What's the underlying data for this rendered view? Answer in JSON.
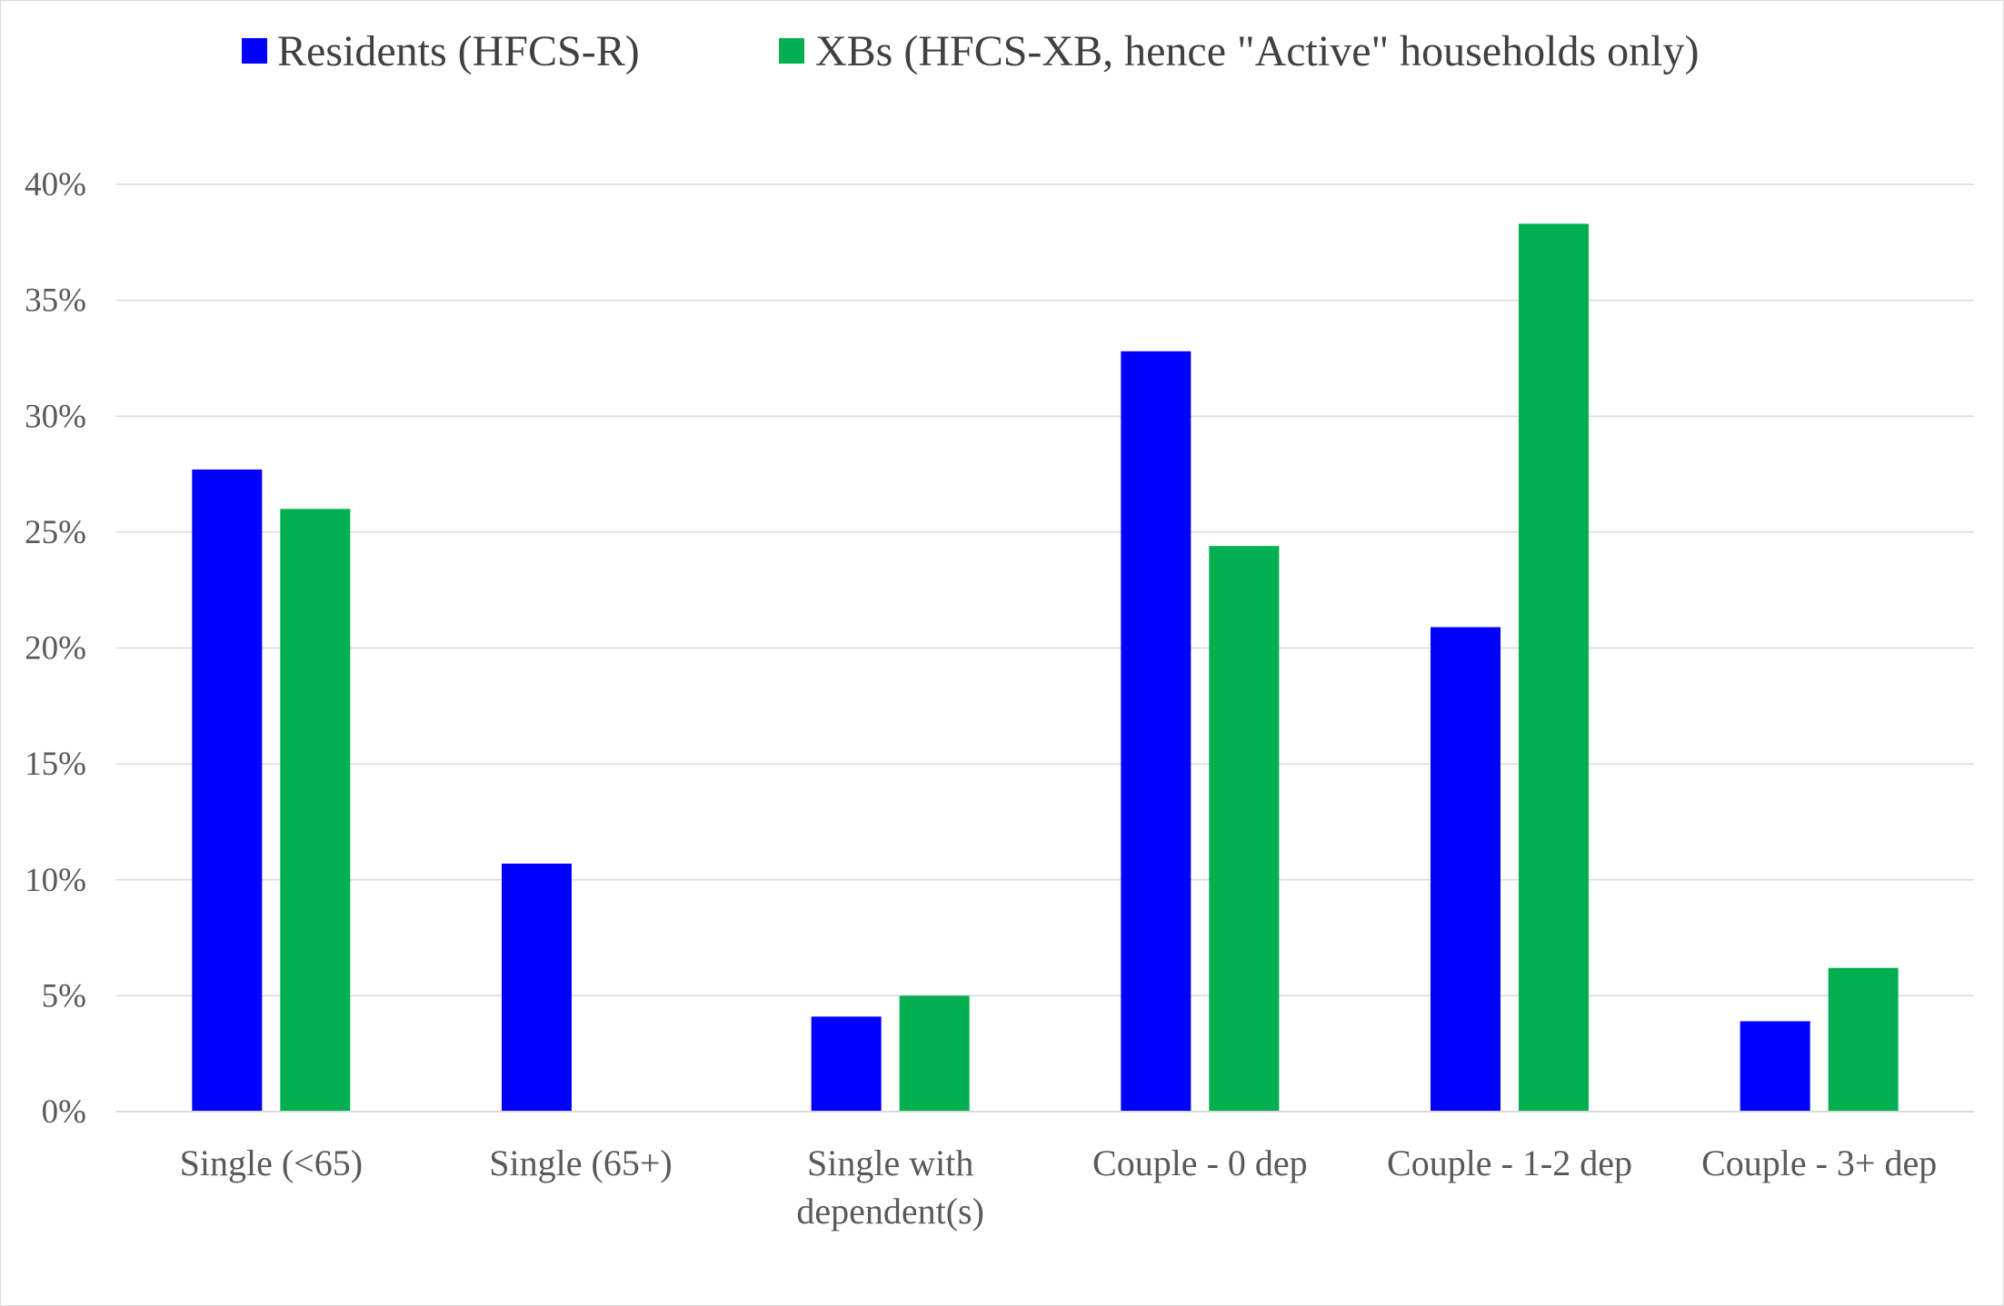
{
  "chart_data": {
    "type": "bar",
    "title": "",
    "xlabel": "",
    "ylabel": "",
    "categories": [
      [
        "Single (<65)"
      ],
      [
        "Single (65+)"
      ],
      [
        "Single with",
        "dependent(s)"
      ],
      [
        "Couple - 0 dep"
      ],
      [
        "Couple - 1-2 dep"
      ],
      [
        "Couple - 3+ dep"
      ]
    ],
    "series": [
      {
        "name": "Residents (HFCS-R)",
        "color": "#0000ff",
        "values": [
          27.7,
          10.7,
          4.1,
          32.8,
          20.9,
          3.9
        ]
      },
      {
        "name": "XBs (HFCS-XB, hence \"Active\" households only)",
        "color": "#00b050",
        "values": [
          26.0,
          0,
          5.0,
          24.4,
          38.3,
          6.2
        ]
      }
    ],
    "ylim": [
      0,
      40
    ],
    "yticks": [
      0,
      5,
      10,
      15,
      20,
      25,
      30,
      35,
      40
    ],
    "ytick_suffix": "%",
    "grid": true,
    "legend_position": "top"
  }
}
